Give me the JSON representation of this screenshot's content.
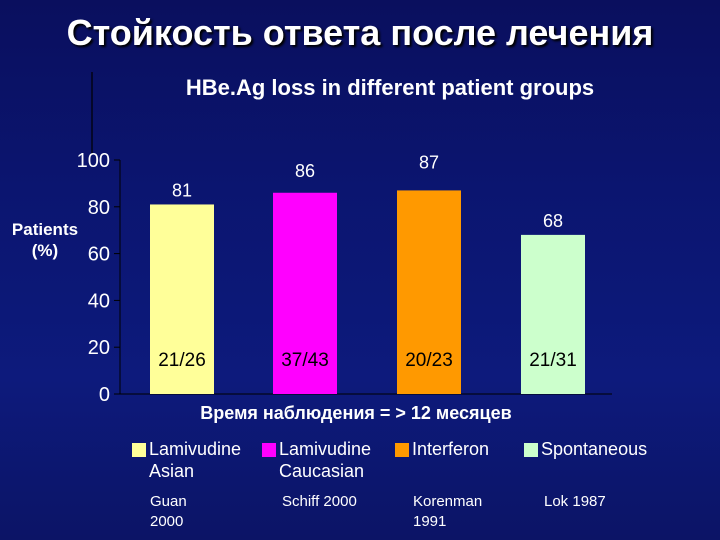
{
  "slide": {
    "title": "Стойкость ответа после лечения"
  },
  "chart_data": {
    "type": "bar",
    "title": "HBe.Ag loss in different patient groups",
    "ylabel": "Patients\n(%)",
    "xlabel": "",
    "ylim": [
      0,
      100
    ],
    "yticks": [
      0,
      20,
      40,
      60,
      80,
      100
    ],
    "grid": false,
    "legend_position": "bottom",
    "categories": [
      "Lamivudine Asian",
      "Lamivudine Caucasian",
      "Interferon",
      "Spontaneous"
    ],
    "values": [
      81,
      86,
      87,
      68
    ],
    "value_labels": [
      "81",
      "86",
      "87",
      "68"
    ],
    "ratio_labels": [
      "21/26",
      "37/43",
      "20/23",
      "21/31"
    ],
    "colors": [
      "#ffff99",
      "#ff00ff",
      "#ff9900",
      "#ccffcc"
    ],
    "caption": "Время наблюдения = > 12 месяцев"
  },
  "legend": {
    "items": [
      {
        "label": "Lamivudine\nAsian",
        "color": "#ffff99"
      },
      {
        "label": "Lamivudine\nCaucasian",
        "color": "#ff00ff"
      },
      {
        "label": "Interferon",
        "color": "#ff9900"
      },
      {
        "label": "Spontaneous",
        "color": "#ccffcc"
      }
    ]
  },
  "sources": [
    "Guan\n2000",
    "Schiff 2000",
    "Korenman\n1991",
    "Lok 1987"
  ]
}
